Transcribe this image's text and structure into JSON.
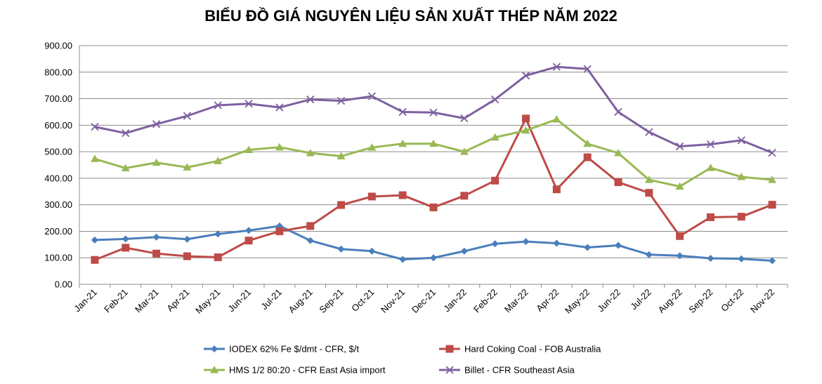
{
  "chart_data": {
    "type": "line",
    "title": "BIỂU ĐỒ GIÁ NGUYÊN LIỆU SẢN XUẤT THÉP NĂM 2022",
    "xlabel": "",
    "ylabel": "",
    "ylim": [
      0,
      900
    ],
    "yticks": [
      "0.00",
      "100.00",
      "200.00",
      "300.00",
      "400.00",
      "500.00",
      "600.00",
      "700.00",
      "800.00",
      "900.00"
    ],
    "grid": true,
    "legend_position": "bottom",
    "categories": [
      "Jan-21",
      "Feb-21",
      "Mar-21",
      "Apr-21",
      "May-21",
      "Jun-21",
      "Jul-21",
      "Aug-21",
      "Sep-21",
      "Oct-21",
      "Nov-21",
      "Dec-21",
      "Jan-22",
      "Feb-22",
      "Mar-22",
      "Apr-22",
      "May-22",
      "Jun-22",
      "Jul-22",
      "Aug-22",
      "Sep-22",
      "Oct-22",
      "Nov-22"
    ],
    "series": [
      {
        "name": "IODEX 62% Fe $/dmt - CFR, $/t",
        "color": "#4a7ebb",
        "marker": "diamond",
        "values": [
          167,
          171,
          178,
          170,
          190,
          203,
          220,
          165,
          133,
          125,
          94,
          100,
          125,
          153,
          161,
          155,
          139,
          147,
          112,
          108,
          98,
          96,
          89
        ]
      },
      {
        "name": "Hard Coking Coal - FOB Australia",
        "color": "#be4b48",
        "marker": "square",
        "values": [
          92,
          138,
          116,
          106,
          102,
          165,
          200,
          220,
          299,
          331,
          336,
          290,
          334,
          391,
          625,
          358,
          479,
          385,
          345,
          182,
          253,
          255,
          300
        ]
      },
      {
        "name": "HMS 1/2 80:20 - CFR East Asia import",
        "color": "#98b954",
        "marker": "triangle",
        "values": [
          473,
          438,
          459,
          441,
          465,
          507,
          517,
          495,
          483,
          516,
          530,
          530,
          500,
          554,
          580,
          622,
          530,
          495,
          394,
          369,
          439,
          405,
          394
        ]
      },
      {
        "name": "Billet - CFR Southeast Asia",
        "color": "#7d60a0",
        "marker": "x",
        "values": [
          594,
          570,
          604,
          635,
          675,
          681,
          667,
          697,
          692,
          709,
          650,
          648,
          626,
          697,
          787,
          820,
          812,
          650,
          574,
          520,
          528,
          543,
          496
        ]
      }
    ]
  }
}
